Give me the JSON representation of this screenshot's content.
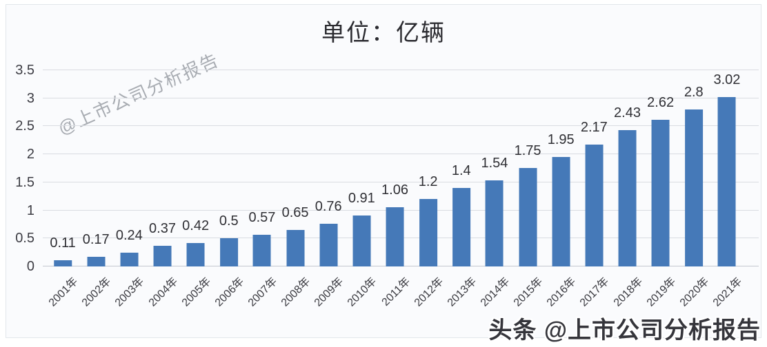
{
  "chart_data": {
    "type": "bar",
    "title": "单位：亿辆",
    "categories": [
      "2001年",
      "2002年",
      "2003年",
      "2004年",
      "2005年",
      "2006年",
      "2007年",
      "2008年",
      "2009年",
      "2010年",
      "2011年",
      "2012年",
      "2013年",
      "2014年",
      "2015年",
      "2016年",
      "2017年",
      "2018年",
      "2019年",
      "2020年",
      "2021年"
    ],
    "values": [
      0.11,
      0.17,
      0.24,
      0.37,
      0.42,
      0.5,
      0.57,
      0.65,
      0.76,
      0.91,
      1.06,
      1.2,
      1.4,
      1.54,
      1.75,
      1.95,
      2.17,
      2.43,
      2.62,
      2.8,
      3.02
    ],
    "xlabel": "",
    "ylabel": "",
    "ylim": [
      0,
      3.5
    ],
    "yticks": [
      0,
      0.5,
      1,
      1.5,
      2,
      2.5,
      3,
      3.5
    ],
    "grid": "horizontal",
    "legend": "none",
    "bar_color": "#4579b8",
    "value_labels_shown": true
  },
  "watermarks": {
    "diagonal": "@上市公司分析报告",
    "bottom": "头条 @上市公司分析报告"
  }
}
